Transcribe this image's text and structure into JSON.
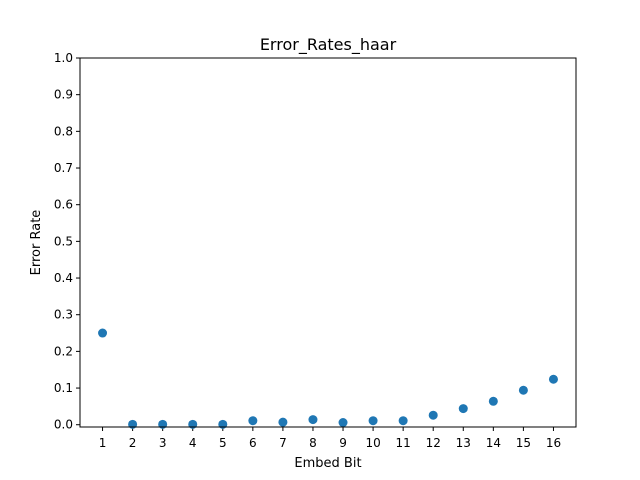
{
  "chart_data": {
    "type": "scatter",
    "title": "Error_Rates_haar",
    "xlabel": "Embed Bit",
    "ylabel": "Error Rate",
    "x": [
      1,
      2,
      3,
      4,
      5,
      6,
      7,
      8,
      9,
      10,
      11,
      12,
      13,
      14,
      15,
      16
    ],
    "y": [
      0.25,
      0.001,
      0.001,
      0.001,
      0.001,
      0.011,
      0.007,
      0.014,
      0.006,
      0.011,
      0.011,
      0.026,
      0.044,
      0.064,
      0.094,
      0.124
    ],
    "xticks": [
      "1",
      "2",
      "3",
      "4",
      "5",
      "6",
      "7",
      "8",
      "9",
      "10",
      "11",
      "12",
      "13",
      "14",
      "15",
      "16"
    ],
    "yticks": [
      "0.0",
      "0.1",
      "0.2",
      "0.3",
      "0.4",
      "0.5",
      "0.6",
      "0.7",
      "0.8",
      "0.9",
      "1.0"
    ],
    "xlim": [
      0.25,
      16.75
    ],
    "ylim": [
      -0.0062,
      1.0
    ],
    "grid": false,
    "marker_color": "#1f77b4"
  }
}
